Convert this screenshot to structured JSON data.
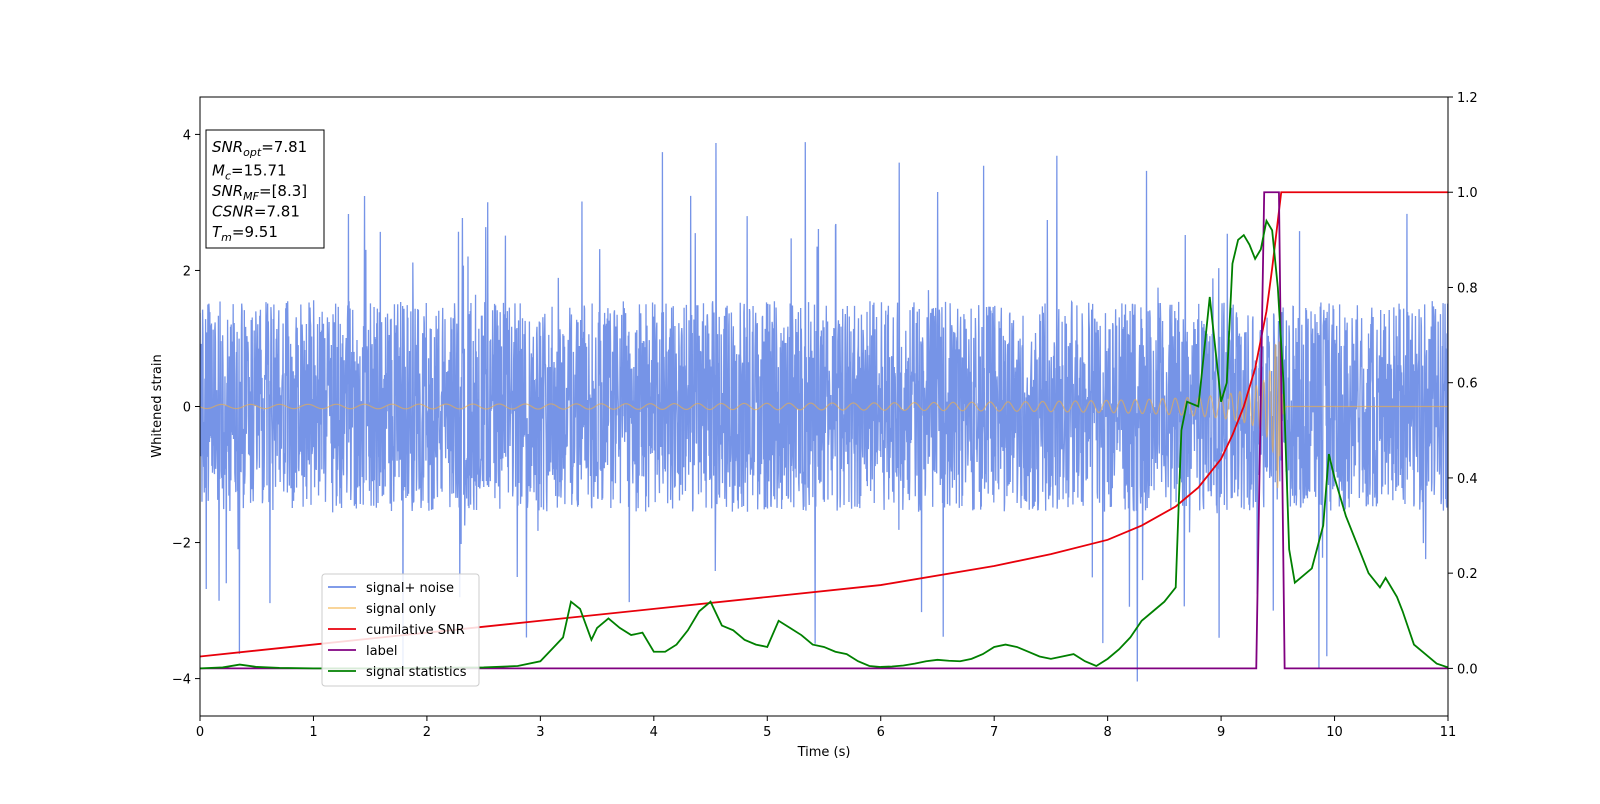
{
  "chart_data": {
    "type": "line",
    "title": "",
    "xlabel": "Time (s)",
    "ylabel": "Whitened strain",
    "y2label": "",
    "xlim": [
      0,
      11
    ],
    "ylim": [
      -4.55,
      4.55
    ],
    "y2lim": [
      -0.1,
      1.2
    ],
    "x_ticks": [
      "0",
      "1",
      "2",
      "3",
      "4",
      "5",
      "6",
      "7",
      "8",
      "9",
      "10",
      "11"
    ],
    "y_ticks": [
      "−4",
      "−2",
      "0",
      "2",
      "4"
    ],
    "y2_ticks": [
      "0.0",
      "0.2",
      "0.4",
      "0.6",
      "0.8",
      "1.0",
      "1.2"
    ],
    "grid": false,
    "legend_placement": "lower-left",
    "stats_box": [
      {
        "base": "SNR",
        "sub": "opt",
        "value": "=7.81"
      },
      {
        "base": "M",
        "sub": "c",
        "value": "=15.71"
      },
      {
        "base": "SNR",
        "sub": "MF",
        "value": "=[8.3]"
      },
      {
        "base": "CSNR",
        "sub": "",
        "value": "=7.81"
      },
      {
        "base": "T",
        "sub": "m",
        "value": "=9.51"
      }
    ],
    "series": [
      {
        "name": "signal+ noise",
        "axis": "left",
        "color": "#6f8ee6",
        "style": "dense-noise",
        "band": 1.55,
        "spike_max": 4.15,
        "spike_min": -4.2
      },
      {
        "name": "signal only",
        "axis": "left",
        "color": "#f5b041",
        "style": "chirp",
        "merger_time": 9.51,
        "peak_amplitude": 1.2
      },
      {
        "name": "cumilative SNR",
        "axis": "right",
        "color": "#e8000b",
        "x": [
          0,
          1,
          2,
          3,
          4,
          5,
          6,
          7,
          7.5,
          8,
          8.3,
          8.6,
          8.8,
          9.0,
          9.1,
          9.2,
          9.3,
          9.4,
          9.45,
          9.5,
          9.53,
          9.6,
          10,
          11
        ],
        "y": [
          0.025,
          0.05,
          0.075,
          0.1,
          0.125,
          0.15,
          0.175,
          0.215,
          0.24,
          0.27,
          0.3,
          0.34,
          0.38,
          0.44,
          0.49,
          0.55,
          0.63,
          0.75,
          0.84,
          0.94,
          1.0,
          1.0,
          1.0,
          1.0
        ]
      },
      {
        "name": "label",
        "axis": "right",
        "color": "#800080",
        "x": [
          0,
          9.31,
          9.38,
          9.51,
          9.56,
          11
        ],
        "y": [
          0,
          0,
          1,
          1,
          0,
          0
        ]
      },
      {
        "name": "signal statistics",
        "axis": "right",
        "color": "#008000",
        "x": [
          0,
          0.2,
          0.35,
          0.5,
          0.7,
          1.0,
          1.5,
          2.0,
          2.5,
          2.8,
          3.0,
          3.1,
          3.2,
          3.27,
          3.35,
          3.45,
          3.5,
          3.6,
          3.7,
          3.8,
          3.9,
          4.0,
          4.1,
          4.2,
          4.3,
          4.4,
          4.5,
          4.6,
          4.7,
          4.8,
          4.9,
          5.0,
          5.1,
          5.2,
          5.3,
          5.4,
          5.5,
          5.6,
          5.7,
          5.8,
          5.9,
          6.0,
          6.1,
          6.2,
          6.3,
          6.4,
          6.5,
          6.6,
          6.7,
          6.8,
          6.9,
          7.0,
          7.1,
          7.2,
          7.3,
          7.4,
          7.5,
          7.6,
          7.7,
          7.8,
          7.9,
          8.0,
          8.1,
          8.2,
          8.3,
          8.4,
          8.5,
          8.6,
          8.65,
          8.7,
          8.8,
          8.9,
          9.0,
          9.05,
          9.1,
          9.15,
          9.2,
          9.25,
          9.3,
          9.35,
          9.4,
          9.45,
          9.5,
          9.55,
          9.6,
          9.65,
          9.7,
          9.8,
          9.9,
          9.95,
          10.0,
          10.1,
          10.2,
          10.3,
          10.4,
          10.45,
          10.55,
          10.6,
          10.7,
          10.8,
          10.9,
          11.0
        ],
        "y": [
          0.0,
          0.002,
          0.008,
          0.003,
          0.001,
          0.0,
          0.0,
          0.001,
          0.002,
          0.005,
          0.015,
          0.04,
          0.065,
          0.14,
          0.125,
          0.06,
          0.085,
          0.105,
          0.085,
          0.07,
          0.075,
          0.035,
          0.035,
          0.05,
          0.08,
          0.12,
          0.14,
          0.09,
          0.08,
          0.06,
          0.05,
          0.045,
          0.1,
          0.085,
          0.07,
          0.05,
          0.045,
          0.035,
          0.03,
          0.015,
          0.005,
          0.003,
          0.004,
          0.006,
          0.01,
          0.015,
          0.018,
          0.016,
          0.015,
          0.02,
          0.03,
          0.045,
          0.05,
          0.045,
          0.035,
          0.025,
          0.02,
          0.025,
          0.03,
          0.015,
          0.005,
          0.02,
          0.04,
          0.065,
          0.1,
          0.12,
          0.14,
          0.17,
          0.5,
          0.56,
          0.55,
          0.78,
          0.56,
          0.6,
          0.85,
          0.9,
          0.91,
          0.89,
          0.86,
          0.88,
          0.94,
          0.92,
          0.8,
          0.6,
          0.25,
          0.18,
          0.19,
          0.21,
          0.3,
          0.45,
          0.4,
          0.32,
          0.26,
          0.2,
          0.17,
          0.19,
          0.15,
          0.12,
          0.05,
          0.03,
          0.01,
          0.002
        ]
      }
    ]
  }
}
